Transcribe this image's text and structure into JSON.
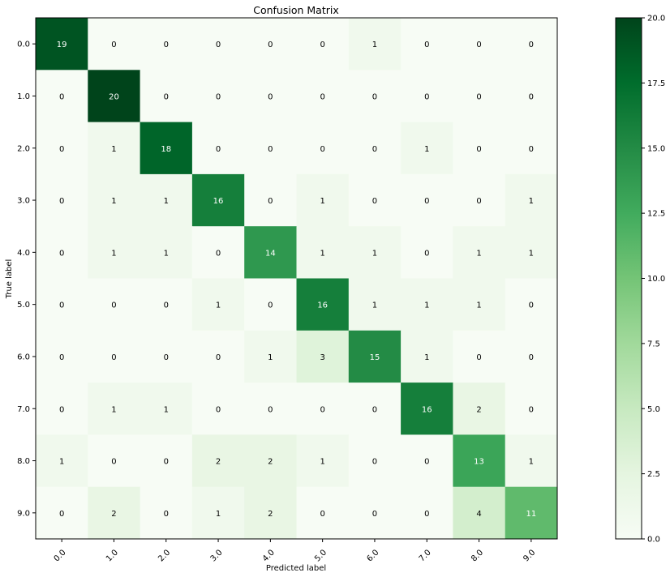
{
  "chart_data": {
    "type": "heatmap",
    "title": "Confusion Matrix",
    "xlabel": "Predicted label",
    "ylabel": "True label",
    "x_categories": [
      "0.0",
      "1.0",
      "2.0",
      "3.0",
      "4.0",
      "5.0",
      "6.0",
      "7.0",
      "8.0",
      "9.0"
    ],
    "y_categories": [
      "0.0",
      "1.0",
      "2.0",
      "3.0",
      "4.0",
      "5.0",
      "6.0",
      "7.0",
      "8.0",
      "9.0"
    ],
    "values": [
      [
        19,
        0,
        0,
        0,
        0,
        0,
        1,
        0,
        0,
        0
      ],
      [
        0,
        20,
        0,
        0,
        0,
        0,
        0,
        0,
        0,
        0
      ],
      [
        0,
        1,
        18,
        0,
        0,
        0,
        0,
        1,
        0,
        0
      ],
      [
        0,
        1,
        1,
        16,
        0,
        1,
        0,
        0,
        0,
        1
      ],
      [
        0,
        1,
        1,
        0,
        14,
        1,
        1,
        0,
        1,
        1
      ],
      [
        0,
        0,
        0,
        1,
        0,
        16,
        1,
        1,
        1,
        0
      ],
      [
        0,
        0,
        0,
        0,
        1,
        3,
        15,
        1,
        0,
        0
      ],
      [
        0,
        1,
        1,
        0,
        0,
        0,
        0,
        16,
        2,
        0
      ],
      [
        1,
        0,
        0,
        2,
        2,
        1,
        0,
        0,
        13,
        1
      ],
      [
        0,
        2,
        0,
        1,
        2,
        0,
        0,
        0,
        4,
        11
      ]
    ],
    "colorscale": "Greens",
    "color_range": [
      0,
      20
    ],
    "colorbar_ticks": [
      "0.0",
      "2.5",
      "5.0",
      "7.5",
      "10.0",
      "12.5",
      "15.0",
      "17.5",
      "20.0"
    ],
    "colors": {
      "low": "#f7fcf5",
      "high": "#00441b",
      "text_dark": "#000000",
      "text_light": "#ffffff"
    }
  }
}
